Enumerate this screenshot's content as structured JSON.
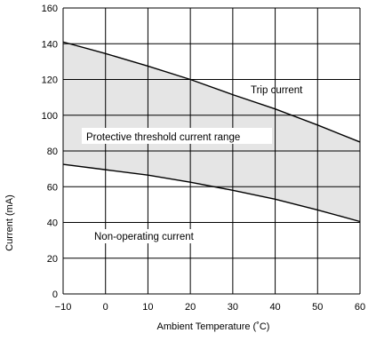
{
  "chart_data": {
    "type": "line",
    "xlabel": "Ambient Temperature (˚C)",
    "ylabel": "Current (mA)",
    "xlim": [
      -10,
      60
    ],
    "ylim": [
      0,
      160
    ],
    "x_ticks": [
      "−10",
      "0",
      "10",
      "20",
      "30",
      "40",
      "50",
      "60"
    ],
    "y_ticks": [
      "0",
      "20",
      "40",
      "60",
      "80",
      "100",
      "120",
      "140",
      "160"
    ],
    "grid": true,
    "series": [
      {
        "name": "Trip current",
        "x": [
          -10,
          0,
          10,
          20,
          30,
          40,
          50,
          60
        ],
        "y": [
          141,
          134.5,
          127.5,
          120,
          111.5,
          103.5,
          94.5,
          85
        ]
      },
      {
        "name": "Non-operating current",
        "x": [
          -10,
          0,
          10,
          20,
          30,
          40,
          50,
          60
        ],
        "y": [
          72.5,
          69.5,
          66.5,
          62.5,
          58,
          53,
          47,
          40.5
        ]
      }
    ],
    "annotations": {
      "trip": "Trip current",
      "range": "Protective threshold current range",
      "nonop": "Non-operating current"
    },
    "colors": {
      "band_fill": "#e5e5e5",
      "line": "#000000",
      "grid": "#000000"
    }
  }
}
